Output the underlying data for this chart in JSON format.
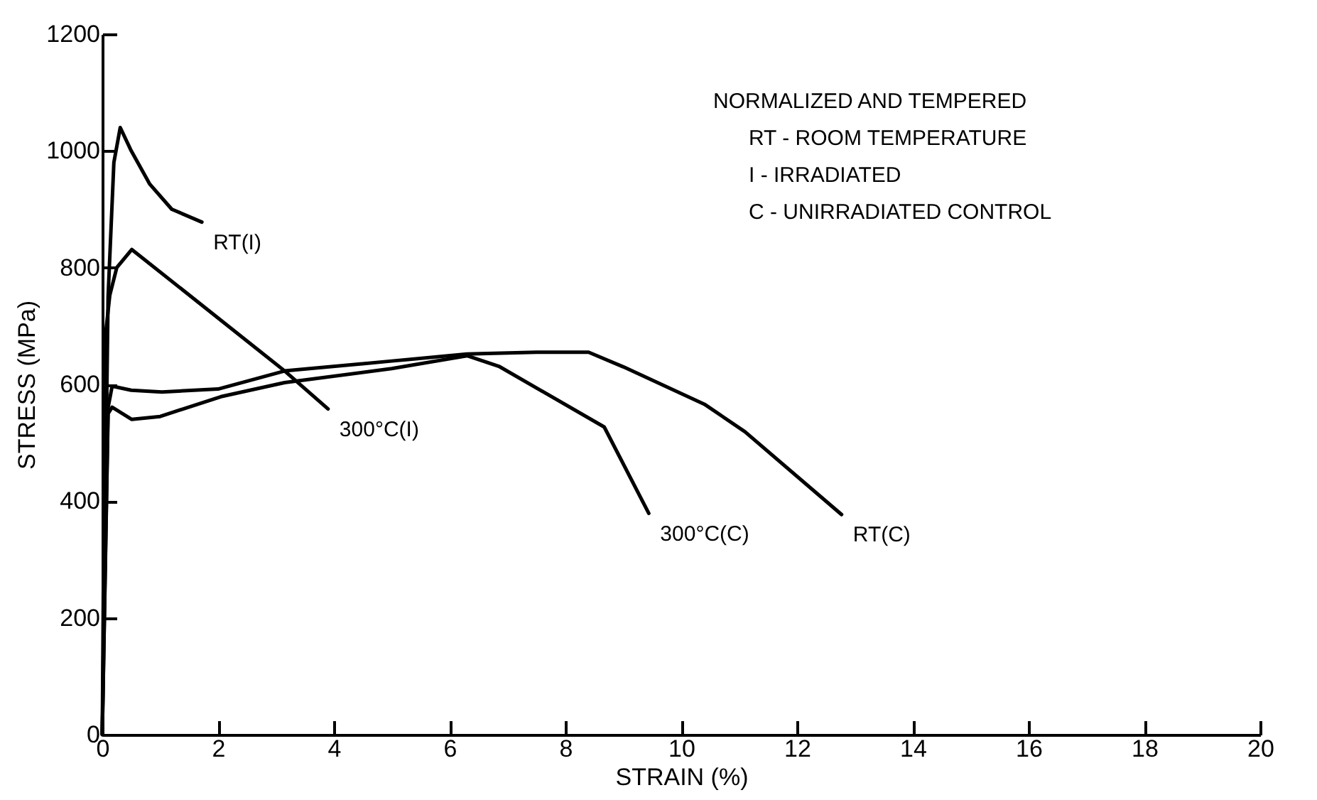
{
  "chart_data": {
    "type": "line",
    "xlabel": "STRAIN (%)",
    "ylabel": "STRESS (MPa)",
    "xlim": [
      0,
      20
    ],
    "ylim": [
      0,
      1200
    ],
    "xticks": [
      0,
      2,
      4,
      6,
      8,
      10,
      12,
      14,
      16,
      18,
      20
    ],
    "yticks": [
      0,
      200,
      400,
      600,
      800,
      1000,
      1200
    ],
    "grid": false,
    "legend": false,
    "marker": "none",
    "line_style": "solid",
    "series": [
      {
        "name": "RT(I)",
        "color": "#000000",
        "x": [
          0,
          0.1,
          0.2,
          0.31,
          0.5,
          0.82,
          1.2,
          1.72
        ],
        "values": [
          0,
          750,
          980,
          1040,
          1000,
          943,
          900,
          878
        ]
      },
      {
        "name": "300°C(I)",
        "color": "#000000",
        "x": [
          0,
          0.05,
          0.13,
          0.25,
          0.51,
          3.15,
          3.9
        ],
        "values": [
          0,
          680,
          753,
          800,
          831,
          623,
          558
        ]
      },
      {
        "name": "RT(C)",
        "color": "#000000",
        "x": [
          0,
          0.1,
          0.17,
          0.5,
          1.03,
          2,
          3.15,
          5,
          6.3,
          7.5,
          8.4,
          9,
          10.4,
          11.1,
          12.77
        ],
        "values": [
          0,
          560,
          597,
          590,
          587,
          592,
          623,
          640,
          652,
          655,
          655,
          630,
          566,
          519,
          377
        ]
      },
      {
        "name": "300°C(C)",
        "color": "#000000",
        "x": [
          0,
          0.1,
          0.17,
          0.51,
          1,
          2.05,
          3.15,
          5,
          6.3,
          6.85,
          8.67,
          9.44
        ],
        "values": [
          0,
          550,
          561,
          540,
          545,
          579,
          603,
          627,
          649,
          631,
          527,
          379
        ]
      }
    ],
    "annotations": [
      "NORMALIZED AND TEMPERED",
      "RT - ROOM TEMPERATURE",
      "I - IRRADIATED",
      "C - UNIRRADIATED CONTROL"
    ]
  }
}
